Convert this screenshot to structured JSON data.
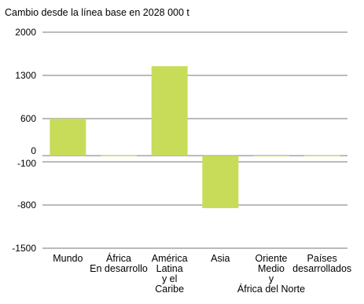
{
  "chart_data": {
    "type": "bar",
    "title": "Cambio desde la línea base en 2028 000 t",
    "xlabel": "",
    "ylabel": "",
    "ylim": [
      -1500,
      2000
    ],
    "y_ticks": [
      2000,
      1300,
      600,
      0,
      -100,
      -800,
      -1500
    ],
    "grid": true,
    "legend": "none",
    "bar_color": "#c8dc5a",
    "grid_color": "#777777",
    "categories": [
      [
        "Mundo"
      ],
      [
        "África",
        "En desarrollo"
      ],
      [
        "América",
        "Latina",
        "y el",
        "Caribe"
      ],
      [
        "Asia"
      ],
      [
        "Oriente",
        "Medio",
        "y",
        "África del Norte"
      ],
      [
        "Países",
        "desarrollados"
      ]
    ],
    "values": [
      600,
      5,
      1450,
      -850,
      2,
      5
    ]
  }
}
